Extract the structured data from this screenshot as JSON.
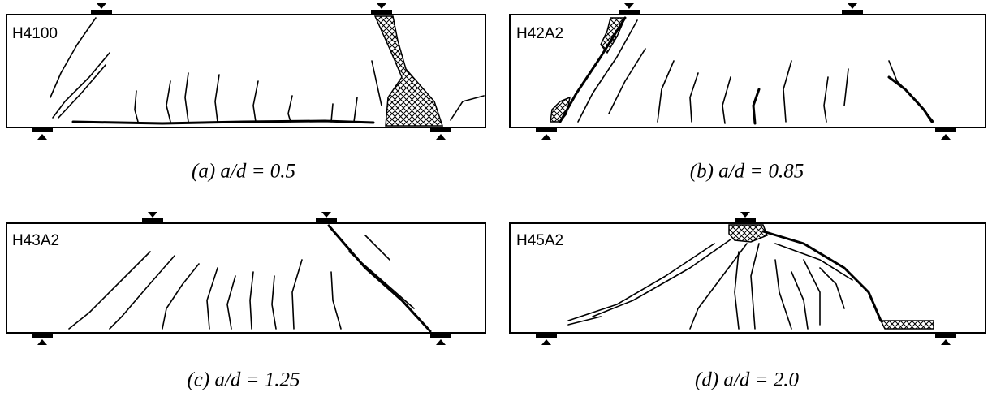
{
  "panels": [
    {
      "label": "H4100",
      "caption": "(a) a/d = 0.5"
    },
    {
      "label": "H42A2",
      "caption": "(b) a/d = 0.85"
    },
    {
      "label": "H43A2",
      "caption": "(c) a/d = 1.25"
    },
    {
      "label": "H45A2",
      "caption": "(d) a/d = 2.0"
    }
  ]
}
